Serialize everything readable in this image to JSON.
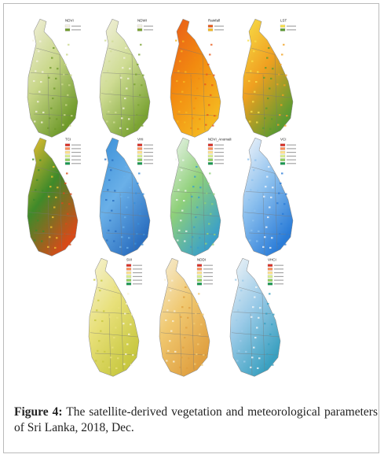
{
  "figure": {
    "panels": [
      {
        "title": "NDVI"
      },
      {
        "title": "NDWI"
      },
      {
        "title": "Rainfall"
      },
      {
        "title": "LST"
      },
      {
        "title": "TCI"
      },
      {
        "title": "VHI"
      },
      {
        "title": "NDVI_Anomali"
      },
      {
        "title": "VCI"
      },
      {
        "title": "SVI"
      },
      {
        "title": "NDDI"
      },
      {
        "title": "VHCI"
      }
    ],
    "caption": {
      "label": "Figure 4:",
      "text": "The satellite-derived vegetation and meteorological parameters of Sri Lanka, 2018, Dec."
    }
  }
}
